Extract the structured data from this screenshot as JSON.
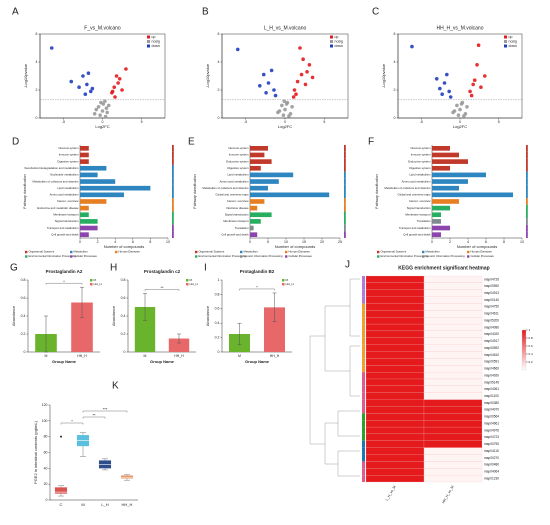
{
  "chart_data": [
    {
      "panel": "A",
      "type": "scatter",
      "title": "F_vs_M.volcano",
      "xlabel": "Log2FC",
      "ylabel": "-Log10pvalue",
      "xlim": [
        -8,
        8
      ],
      "xticks": [
        -5,
        0,
        5
      ],
      "ylim": [
        0,
        6
      ],
      "yticks": [
        0,
        2,
        4,
        6
      ],
      "threshold": 1.3,
      "series": [
        {
          "name": "up",
          "color": "#e41a1c",
          "x": [
            1.2,
            1.5,
            2,
            1.8,
            2.5,
            3,
            1.3,
            2.2,
            1.6
          ],
          "y": [
            1.8,
            2.2,
            2.5,
            3,
            2,
            3.5,
            1.9,
            2.8,
            1.5
          ]
        },
        {
          "name": "nosig",
          "color": "#999999",
          "x": [
            -1,
            -0.5,
            0,
            0.3,
            0.6,
            -0.3,
            0.8,
            -0.8,
            0.1,
            0.4,
            -0.2,
            0.5
          ],
          "y": [
            0.3,
            0.8,
            0.5,
            1.2,
            0.4,
            0.2,
            0.9,
            0.6,
            1,
            0.1,
            1.1,
            0.7
          ]
        },
        {
          "name": "down",
          "color": "#1f3fbf",
          "x": [
            -1.5,
            -2,
            -2.5,
            -3,
            -1.8,
            -4,
            -2.2,
            -1.3,
            -6.5
          ],
          "y": [
            1.9,
            2.4,
            3,
            2.2,
            3.2,
            2.6,
            1.7,
            2.1,
            5
          ]
        }
      ]
    },
    {
      "panel": "B",
      "type": "scatter",
      "title": "L_H_vs_M.volcano",
      "xlabel": "Log2FC",
      "ylabel": "-Log10pvalue",
      "xlim": [
        -8,
        8
      ],
      "xticks": [
        -5,
        0,
        5
      ],
      "ylim": [
        0,
        6
      ],
      "yticks": [
        0,
        2,
        4,
        6
      ],
      "threshold": 1.3,
      "series": [
        {
          "name": "up",
          "color": "#e41a1c",
          "x": [
            1.2,
            1.6,
            2.1,
            2.6,
            3.1,
            1.4,
            2.3,
            3.5,
            1.9,
            2.8,
            1.1
          ],
          "y": [
            2,
            2.6,
            3.1,
            2.4,
            3.8,
            1.7,
            4.2,
            2.9,
            5,
            3.3,
            1.5
          ]
        },
        {
          "name": "nosig",
          "color": "#999999",
          "x": [
            -0.9,
            -0.4,
            0,
            0.3,
            0.7,
            -0.2,
            0.9,
            -0.7,
            0.2,
            0.5,
            -0.1
          ],
          "y": [
            0.4,
            0.9,
            0.6,
            1.1,
            0.3,
            0.2,
            0.8,
            0.5,
            1,
            0.15,
            1.2
          ]
        },
        {
          "name": "down",
          "color": "#1f3fbf",
          "x": [
            -1.4,
            -2.1,
            -2.7,
            -3.2,
            -1.7,
            -2.4,
            -1.2,
            -6
          ],
          "y": [
            2,
            2.5,
            3.1,
            2.3,
            3.4,
            1.8,
            1.6,
            4.9
          ]
        }
      ]
    },
    {
      "panel": "C",
      "type": "scatter",
      "title": "HH_H_vs_M.volcano",
      "xlabel": "Log2FC",
      "ylabel": "-Log10pvalue",
      "xlim": [
        -8,
        8
      ],
      "xticks": [
        -5,
        0,
        5
      ],
      "ylim": [
        0,
        6
      ],
      "yticks": [
        0,
        2,
        4,
        6
      ],
      "threshold": 1.3,
      "series": [
        {
          "name": "up",
          "color": "#e41a1c",
          "x": [
            1.3,
            1.7,
            2.2,
            2.7,
            3.2,
            1.5,
            2.4,
            1.9
          ],
          "y": [
            1.9,
            2.4,
            3.8,
            2.2,
            3,
            1.6,
            5.2,
            2.7
          ]
        },
        {
          "name": "nosig",
          "color": "#999999",
          "x": [
            -0.9,
            -0.4,
            0,
            0.3,
            0.7,
            -0.2,
            0.9,
            -0.7,
            0.2,
            0.5
          ],
          "y": [
            0.4,
            0.9,
            0.6,
            1.1,
            0.3,
            0.2,
            0.8,
            0.5,
            1,
            0.15
          ]
        },
        {
          "name": "down",
          "color": "#1f3fbf",
          "x": [
            -1.4,
            -2,
            -2.6,
            -1.7,
            -2.3,
            -1.2,
            -3,
            -6.2
          ],
          "y": [
            1.9,
            2.5,
            2.1,
            3.1,
            1.7,
            1.5,
            2.8,
            5.1
          ]
        }
      ]
    },
    {
      "panel": "D",
      "type": "barh",
      "xlabel": "Number of compounds",
      "ylabel": "Pathway classification",
      "xlim": [
        0,
        10
      ],
      "xticks": [
        0,
        2,
        4,
        6,
        8,
        10
      ],
      "categories": [
        "Nervous system",
        "Immune system",
        "Digestive system",
        "Xenobiotics biodegradation and metabolism",
        "Nucleotide metabolism",
        "Metabolism of cofactors and vitamins",
        "Lipid metabolism",
        "Amino acid metabolism",
        "Cancer: overview",
        "Endocrine and metabolic disease",
        "Membrane transport",
        "Signal transduction",
        "Transport and catabolism",
        "Cell growth and death"
      ],
      "values": [
        1,
        1,
        1,
        3,
        2,
        4,
        8,
        5,
        3,
        1,
        1,
        2,
        2,
        1
      ],
      "bar_colors": [
        "#c0392b",
        "#c0392b",
        "#c0392b",
        "#2e86c1",
        "#2e86c1",
        "#2e86c1",
        "#2e86c1",
        "#2e86c1",
        "#e67e22",
        "#e67e22",
        "#27ae60",
        "#27ae60",
        "#8e44ad",
        "#8e44ad"
      ],
      "legend": [
        "Organismal Systems",
        "Metabolism",
        "Human Diseases",
        "Environmental Information Processing",
        "Cellular Processes"
      ],
      "legend_colors": [
        "#c0392b",
        "#2e86c1",
        "#e67e22",
        "#27ae60",
        "#8e44ad"
      ]
    },
    {
      "panel": "E",
      "type": "barh",
      "xlabel": "Number of compounds",
      "ylabel": "Pathway classification",
      "xlim": [
        0,
        25
      ],
      "xticks": [
        0,
        5,
        10,
        15,
        20,
        25
      ],
      "categories": [
        "Nervous system",
        "Immune system",
        "Endocrine system",
        "Digestive system",
        "Lipid metabolism",
        "Amino acid metabolism",
        "Metabolism of cofactors and vitamins",
        "Global and overview maps",
        "Cancer: overview",
        "Infectious disease",
        "Signal transduction",
        "Membrane transport",
        "Translation",
        "Cell growth and death"
      ],
      "values": [
        5,
        4,
        6,
        3,
        12,
        8,
        5,
        22,
        4,
        2,
        6,
        3,
        1,
        2
      ],
      "bar_colors": [
        "#c0392b",
        "#c0392b",
        "#c0392b",
        "#c0392b",
        "#2e86c1",
        "#2e86c1",
        "#2e86c1",
        "#2e86c1",
        "#e67e22",
        "#e67e22",
        "#27ae60",
        "#27ae60",
        "#7f8c8d",
        "#8e44ad"
      ],
      "legend": [
        "Organismal Systems",
        "Metabolism",
        "Human Diseases",
        "Environmental Information Processing",
        "Genetic Information Processing",
        "Cellular Processes"
      ],
      "legend_colors": [
        "#c0392b",
        "#2e86c1",
        "#e67e22",
        "#27ae60",
        "#7f8c8d",
        "#8e44ad"
      ]
    },
    {
      "panel": "F",
      "type": "barh",
      "xlabel": "Number of compounds",
      "ylabel": "Pathway classification",
      "xlim": [
        0,
        10
      ],
      "xticks": [
        0,
        2,
        4,
        6,
        8,
        10
      ],
      "categories": [
        "Nervous system",
        "Immune system",
        "Endocrine system",
        "Digestive system",
        "Lipid metabolism",
        "Amino acid metabolism",
        "Metabolism of cofactors and vitamins",
        "Global and overview maps",
        "Cancer: overview",
        "Signal transduction",
        "Membrane transport",
        "Translation",
        "Transport and catabolism",
        "Cell growth and death"
      ],
      "values": [
        2,
        3,
        4,
        2,
        6,
        4,
        3,
        9,
        3,
        2,
        1,
        1,
        2,
        1
      ],
      "bar_colors": [
        "#c0392b",
        "#c0392b",
        "#c0392b",
        "#c0392b",
        "#2e86c1",
        "#2e86c1",
        "#2e86c1",
        "#2e86c1",
        "#e67e22",
        "#27ae60",
        "#27ae60",
        "#7f8c8d",
        "#8e44ad",
        "#8e44ad"
      ],
      "legend": [
        "Organismal Systems",
        "Metabolism",
        "Human Diseases",
        "Environmental Information Processing",
        "Genetic Information Processing",
        "Cellular Processes"
      ],
      "legend_colors": [
        "#c0392b",
        "#2e86c1",
        "#e67e22",
        "#27ae60",
        "#7f8c8d",
        "#8e44ad"
      ]
    },
    {
      "panel": "G",
      "type": "bar",
      "title": "Prostaglandin A2",
      "xlabel": "Group Name",
      "ylabel": "Abundance",
      "categories": [
        "M",
        "HH_H"
      ],
      "values": [
        0.2,
        0.55
      ],
      "errors": [
        0.2,
        0.17
      ],
      "colors": [
        "#6ab42d",
        "#e8686a"
      ],
      "ylim": [
        0,
        0.8
      ],
      "yticks": [
        0,
        0.2,
        0.4,
        0.6,
        0.8
      ],
      "significance": "*"
    },
    {
      "panel": "H",
      "type": "bar",
      "title": "Prostaglandin c2",
      "xlabel": "Group Name",
      "ylabel": "Abundance",
      "categories": [
        "M",
        "HH_H"
      ],
      "values": [
        0.5,
        0.15
      ],
      "errors": [
        0.15,
        0.05
      ],
      "colors": [
        "#6ab42d",
        "#e8686a"
      ],
      "ylim": [
        0,
        0.8
      ],
      "yticks": [
        0,
        0.2,
        0.4,
        0.6,
        0.8
      ],
      "significance": "**"
    },
    {
      "panel": "I",
      "type": "bar",
      "title": "Protaglandin B2",
      "xlabel": "Group Name",
      "ylabel": "Abundance",
      "categories": [
        "M",
        "HH_H"
      ],
      "values": [
        0.25,
        0.62
      ],
      "errors": [
        0.15,
        0.2
      ],
      "colors": [
        "#6ab42d",
        "#e8686a"
      ],
      "ylim": [
        0,
        1
      ],
      "yticks": [
        0,
        0.2,
        0.4,
        0.6,
        0.8,
        1
      ],
      "significance": "*"
    },
    {
      "panel": "J",
      "type": "heatmap",
      "title": "KEGG enrichment significant heatmap",
      "columns": [
        "L_H_vs_M",
        "HH_H_vs_M"
      ],
      "rows": [
        "map04726",
        "map00590",
        "map04913",
        "map00140",
        "map04750",
        "map04611",
        "map05200",
        "map04080",
        "map04020",
        "map04917",
        "map00592",
        "map04610",
        "map00591",
        "map04660",
        "map04920",
        "map05145",
        "map04061",
        "map01100",
        "map00380",
        "map04070",
        "map00564",
        "map04961",
        "map04976",
        "map04723",
        "map00790",
        "map04115",
        "map00270",
        "map00480",
        "map04064",
        "map01230"
      ],
      "values": [
        [
          1,
          0.05
        ],
        [
          1,
          0.05
        ],
        [
          1,
          0.05
        ],
        [
          1,
          0.05
        ],
        [
          1,
          0.05
        ],
        [
          1,
          0.05
        ],
        [
          1,
          0.05
        ],
        [
          1,
          0.05
        ],
        [
          1,
          0.05
        ],
        [
          1,
          0.05
        ],
        [
          1,
          0.05
        ],
        [
          1,
          0.05
        ],
        [
          1,
          0.05
        ],
        [
          1,
          0.05
        ],
        [
          1,
          0.05
        ],
        [
          1,
          0.05
        ],
        [
          1,
          0.05
        ],
        [
          1,
          0.05
        ],
        [
          1,
          1
        ],
        [
          1,
          1
        ],
        [
          1,
          1
        ],
        [
          1,
          1
        ],
        [
          1,
          1
        ],
        [
          1,
          1
        ],
        [
          1,
          1
        ],
        [
          1,
          0.05
        ],
        [
          1,
          0.05
        ],
        [
          1,
          0.05
        ],
        [
          1,
          0.05
        ],
        [
          1,
          0.05
        ]
      ],
      "clim": [
        0,
        1
      ],
      "cticks": [
        0.2,
        0.4,
        0.6,
        0.8,
        1
      ],
      "colors": [
        "#ffffff",
        "#e41a1c"
      ]
    },
    {
      "panel": "K",
      "type": "box",
      "ylabel": "PGE2 in intestinal contents (pg/mL)",
      "categories": [
        "C",
        "M",
        "L_H",
        "HH_H"
      ],
      "stats": [
        {
          "min": 5,
          "q1": 8,
          "median": 10,
          "q3": 16,
          "max": 18
        },
        {
          "min": 55,
          "q1": 68,
          "median": 75,
          "q3": 82,
          "max": 85
        },
        {
          "min": 38,
          "q1": 40,
          "median": 45,
          "q3": 50,
          "max": 52
        },
        {
          "min": 25,
          "q1": 27,
          "median": 28,
          "q3": 31,
          "max": 32
        }
      ],
      "outliers": [
        [
          80
        ],
        [],
        [],
        []
      ],
      "colors": [
        "#d9534f",
        "#5bc0de",
        "#2d4c8a",
        "#e8956b"
      ],
      "ylim": [
        0,
        120
      ],
      "yticks": [
        0,
        20,
        40,
        60,
        80,
        100,
        120
      ],
      "comparisons": [
        {
          "pair": [
            "C",
            "M"
          ],
          "label": "*"
        },
        {
          "pair": [
            "M",
            "L_H"
          ],
          "label": "**"
        },
        {
          "pair": [
            "M",
            "HH_H"
          ],
          "label": "***"
        }
      ]
    }
  ]
}
